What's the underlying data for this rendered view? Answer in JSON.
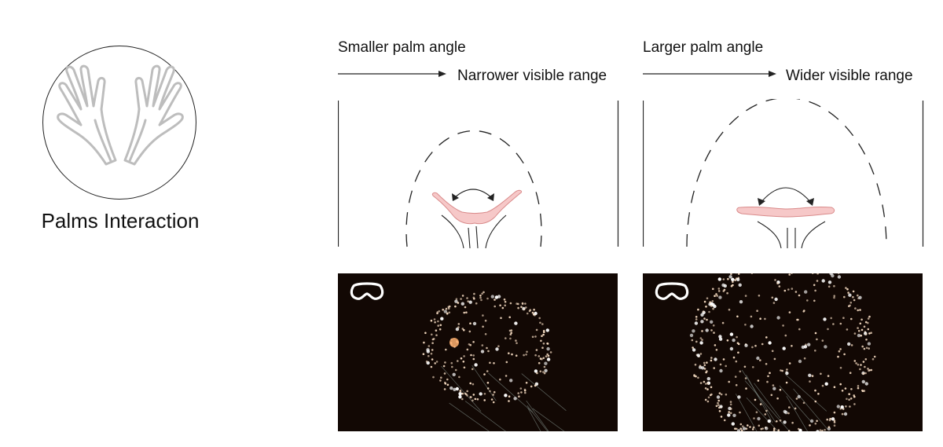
{
  "left": {
    "title": "Palms Interaction",
    "icon": "hands-icon"
  },
  "panels": [
    {
      "heading": "Smaller palm angle",
      "result": "Narrower visible range",
      "icon": "headset-icon"
    },
    {
      "heading": "Larger palm angle",
      "result": "Wider visible range",
      "icon": "headset-icon"
    }
  ],
  "colors": {
    "palm_fill": "#f6c8c8",
    "palm_stroke": "#d98a8a",
    "vr_background": "#120804",
    "particle": "#f3d9bf"
  }
}
